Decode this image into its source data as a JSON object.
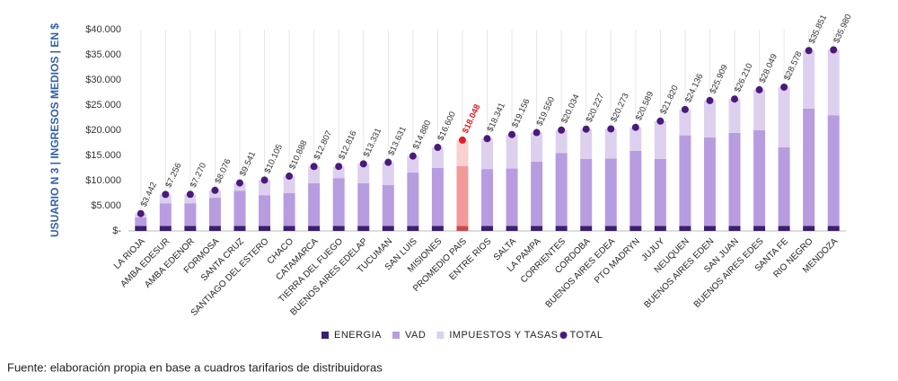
{
  "chart_data": {
    "type": "stacked_bar",
    "y_label": "USUARIO N 3 | INGRESOS MEDIOS | EN $",
    "source": "Fuente: elaboración propia en base a cuadros tarifarios de distribuidoras",
    "categories": [
      "LA RIOJA",
      "AMBA EDESUR",
      "AMBA EDENOR",
      "FORMOSA",
      "SANTA CRUZ",
      "SANTIAGO DEL ESTERO",
      "CHACO",
      "CATAMARCA",
      "TIERRA DEL FUEGO",
      "BUENOS AIRES EDELAP",
      "TUCUMAN",
      "SAN LUIS",
      "MISIONES",
      "PROMEDIO PAIS",
      "ENTRE RIOS",
      "SALTA",
      "LA PAMPA",
      "CORRIENTES",
      "CORDOBA",
      "BUENOS AIRES EDEA",
      "PTO MADRYN",
      "JUJUY",
      "NEUQUEN",
      "BUENOS AIRES EDEN",
      "SAN JUAN",
      "BUENOS AIRES EDES",
      "SANTA FE",
      "RIO NEGRO",
      "MENDOZA"
    ],
    "series": [
      {
        "name": "ENERGIA",
        "color": "#3b1f6e",
        "highlight_color": "#c94a4a",
        "values": [
          1000,
          1000,
          1000,
          1000,
          1000,
          1000,
          1000,
          1000,
          1000,
          1000,
          1000,
          1000,
          1000,
          1000,
          1000,
          1000,
          1000,
          1000,
          1000,
          1000,
          1000,
          1000,
          1000,
          1000,
          1000,
          1000,
          1000,
          1000,
          1000
        ]
      },
      {
        "name": "VAD",
        "color": "#b89ce0",
        "highlight_color": "#f29a9a",
        "values": [
          1700,
          4500,
          4500,
          5600,
          7000,
          6100,
          6500,
          8500,
          9500,
          8500,
          8100,
          10600,
          11500,
          11900,
          11300,
          11400,
          12800,
          14500,
          13300,
          13400,
          14900,
          13300,
          18000,
          17600,
          18500,
          19000,
          15600,
          23300,
          22000
        ]
      },
      {
        "name": "IMPUESTOS Y TASAS",
        "color": "#ddd0ef",
        "highlight_color": "#fbd0d0",
        "values": [
          742,
          1756,
          1770,
          1476,
          1541,
          3005,
          3388,
          3307,
          2316,
          3831,
          4531,
          3280,
          4100,
          5148,
          6041,
          6756,
          5750,
          4534,
          5927,
          5873,
          4689,
          7520,
          5136,
          7309,
          6710,
          8049,
          11978,
          11551,
          12980
        ]
      }
    ],
    "totals": {
      "name": "TOTAL",
      "color": "#4a1a7a",
      "highlight_color": "#e0202a",
      "values": [
        3442,
        7256,
        7270,
        8076,
        9541,
        10105,
        10888,
        12807,
        12816,
        13331,
        13631,
        14880,
        16600,
        18048,
        18341,
        19156,
        19550,
        20034,
        20227,
        20273,
        20589,
        21820,
        24136,
        25909,
        26210,
        28049,
        28578,
        35851,
        35980
      ],
      "value_labels": [
        "$3.442",
        "$7.256",
        "$7.270",
        "$8.076",
        "$9.541",
        "$10.105",
        "$10.888",
        "$12.807",
        "$12.816",
        "$13.331",
        "$13.631",
        "$14.880",
        "$16.600",
        "$18.048",
        "$18.341",
        "$19.156",
        "$19.550",
        "$20.034",
        "$20.227",
        "$20.273",
        "$20.589",
        "$21.820",
        "$24.136",
        "$25.909",
        "$26.210",
        "$28.049",
        "$28.578",
        "$35.851",
        "$35.980"
      ]
    },
    "highlight_category": "PROMEDIO PAIS",
    "ylim": [
      0,
      40000
    ],
    "yticks": [
      {
        "value": 0,
        "label": "$-"
      },
      {
        "value": 5000,
        "label": "$5.000"
      },
      {
        "value": 10000,
        "label": "$10.000"
      },
      {
        "value": 15000,
        "label": "$15.000"
      },
      {
        "value": 20000,
        "label": "$20.000"
      },
      {
        "value": 25000,
        "label": "$25.000"
      },
      {
        "value": 30000,
        "label": "$30.000"
      },
      {
        "value": 35000,
        "label": "$35.000"
      },
      {
        "value": 40000,
        "label": "$40.000"
      }
    ],
    "legend": "bottom"
  }
}
